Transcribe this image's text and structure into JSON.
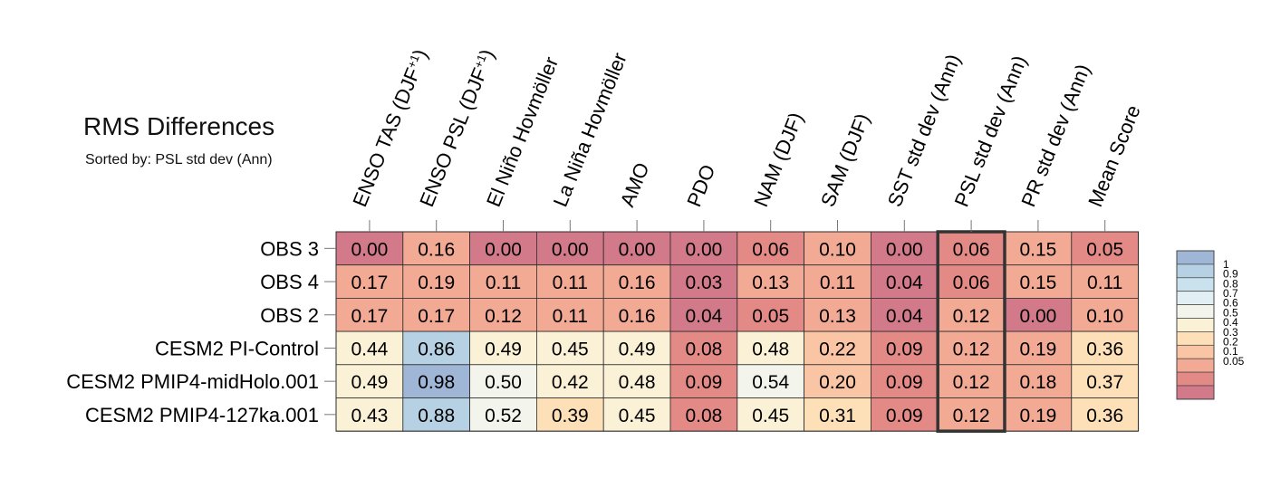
{
  "chart_data": {
    "type": "heatmap",
    "title": "RMS Differences",
    "subtitle": "Sorted by: PSL std dev (Ann)",
    "columns": [
      {
        "label": "ENSO TAS (DJF",
        "sup": "+1",
        "tail": ")"
      },
      {
        "label": "ENSO PSL (DJF",
        "sup": "+1",
        "tail": ")"
      },
      {
        "label": "El Niño Hovmöller"
      },
      {
        "label": "La Niña Hovmöller"
      },
      {
        "label": "AMO"
      },
      {
        "label": "PDO"
      },
      {
        "label": "NAM (DJF)"
      },
      {
        "label": "SAM (DJF)"
      },
      {
        "label": "SST std dev (Ann)"
      },
      {
        "label": "PSL std dev (Ann)"
      },
      {
        "label": "PR std dev (Ann)"
      },
      {
        "label": "Mean Score"
      }
    ],
    "rows": [
      "OBS 3",
      "OBS 4",
      "OBS 2",
      "CESM2 PI-Control",
      "CESM2 PMIP4-midHolo.001",
      "CESM2 PMIP4-127ka.001"
    ],
    "values": [
      [
        0.0,
        0.16,
        0.0,
        0.0,
        0.0,
        0.0,
        0.06,
        0.1,
        0.0,
        0.06,
        0.15,
        0.05
      ],
      [
        0.17,
        0.19,
        0.11,
        0.11,
        0.16,
        0.03,
        0.13,
        0.11,
        0.04,
        0.06,
        0.15,
        0.11
      ],
      [
        0.17,
        0.17,
        0.12,
        0.11,
        0.16,
        0.04,
        0.05,
        0.13,
        0.04,
        0.12,
        0.0,
        0.1
      ],
      [
        0.44,
        0.86,
        0.49,
        0.45,
        0.49,
        0.08,
        0.48,
        0.22,
        0.09,
        0.12,
        0.19,
        0.36
      ],
      [
        0.49,
        0.98,
        0.5,
        0.42,
        0.48,
        0.09,
        0.54,
        0.2,
        0.09,
        0.12,
        0.18,
        0.37
      ],
      [
        0.43,
        0.88,
        0.52,
        0.39,
        0.45,
        0.08,
        0.45,
        0.31,
        0.09,
        0.12,
        0.19,
        0.36
      ]
    ],
    "highlighted_column": "PSL std dev (Ann)",
    "legend": {
      "placement": "right",
      "ticks": [
        "1",
        "0.9",
        "0.8",
        "0.7",
        "0.6",
        "0.5",
        "0.4",
        "0.3",
        "0.2",
        "0.1",
        "0.05"
      ],
      "bin_colors": [
        "#9fb6d6",
        "#b5d1e3",
        "#c9e2ee",
        "#e1eff5",
        "#f3f4ec",
        "#fbf1d6",
        "#fde0b8",
        "#fac5a4",
        "#f2aa95",
        "#e48a86",
        "#d27a8a"
      ]
    },
    "color_scale": {
      "thresholds": [
        0.05,
        0.1,
        0.2,
        0.3,
        0.4,
        0.5,
        0.6,
        0.7,
        0.8,
        0.9
      ],
      "colors": [
        "#d27a8a",
        "#e48a86",
        "#f2aa95",
        "#fac5a4",
        "#fde0b8",
        "#fbf1d6",
        "#f3f4ec",
        "#e1eff5",
        "#c9e2ee",
        "#b5d1e3",
        "#9fb6d6"
      ]
    }
  }
}
